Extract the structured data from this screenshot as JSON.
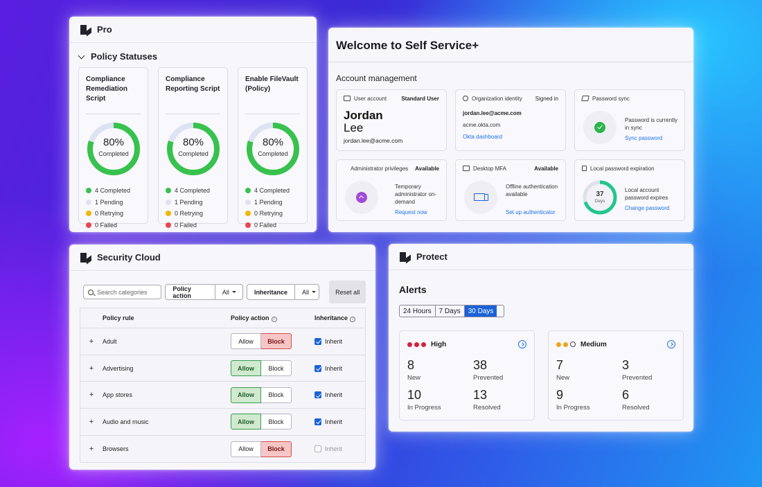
{
  "pro": {
    "title": "Pro",
    "section": "Policy Statuses",
    "cards": [
      {
        "title": "Compliance Remediation Script",
        "percent": 80,
        "percent_label": "80%",
        "status": "Completed",
        "legend": {
          "completed": "4 Completed",
          "pending": "1 Pending",
          "retrying": "0 Retrying",
          "failed": "0 Failed"
        }
      },
      {
        "title": "Compliance Reporting Script",
        "percent": 80,
        "percent_label": "80%",
        "status": "Completed",
        "legend": {
          "completed": "4 Completed",
          "pending": "1 Pending",
          "retrying": "0 Retrying",
          "failed": "0 Failed"
        }
      },
      {
        "title": "Enable FileVault (Policy)",
        "percent": 80,
        "percent_label": "80%",
        "status": "Completed",
        "legend": {
          "completed": "4 Completed",
          "pending": "1 Pending",
          "retrying": "0 Retrying",
          "failed": "0 Failed"
        }
      }
    ],
    "colors": {
      "completed": "#37c24d",
      "pending": "#dde3f3",
      "retrying": "#f2b705",
      "failed": "#e8464a"
    }
  },
  "self_service": {
    "title": "Welcome to Self Service+",
    "subtitle": "Account management",
    "user_account": {
      "label": "User account",
      "role": "Standard User",
      "first": "Jordan",
      "last": "Lee",
      "email": "jordan.lee@acme.com"
    },
    "org_identity": {
      "label": "Organization identity",
      "status": "Signed in",
      "email": "jordan.lee@acme.com",
      "domain": "acme.okta.com",
      "link": "Okta dashboard"
    },
    "password_sync": {
      "label": "Password sync",
      "text": "Password is currently in sync",
      "link": "Sync password"
    },
    "admin": {
      "label": "Administrator privileges",
      "status": "Available",
      "text": "Temporary administrator on-demand",
      "link": "Request now"
    },
    "mfa": {
      "label": "Desktop MFA",
      "status": "Available",
      "text": "Offline authentication available",
      "link": "Set up authenticator"
    },
    "expiration": {
      "label": "Local password expiration",
      "days": "37",
      "days_unit": "Days",
      "days_fraction": 0.7,
      "text": "Local account password expires",
      "link": "Change password"
    }
  },
  "security_cloud": {
    "title": "Security Cloud",
    "search_placeholder": "Search categories",
    "filter1": {
      "label": "Policy action",
      "value": "All"
    },
    "filter2": {
      "label": "Inheritance",
      "value": "All"
    },
    "reset": "Reset all",
    "headers": {
      "rule": "Policy rule",
      "action": "Policy action",
      "inherit": "Inheritance"
    },
    "allow_label": "Allow",
    "block_label": "Block",
    "inherit_label": "Inherit",
    "rows": [
      {
        "name": "Adult",
        "action": "block",
        "inherit": true
      },
      {
        "name": "Advertising",
        "action": "allow",
        "inherit": true
      },
      {
        "name": "App stores",
        "action": "allow",
        "inherit": true
      },
      {
        "name": "Audio and music",
        "action": "allow",
        "inherit": true
      },
      {
        "name": "Browsers",
        "action": "block",
        "inherit": false
      }
    ]
  },
  "protect": {
    "title": "Protect",
    "alerts_title": "Alerts",
    "tabs": [
      "24 Hours",
      "7 Days",
      "30 Days"
    ],
    "active_tab": 2,
    "high": {
      "label": "High",
      "new": "8",
      "new_label": "New",
      "prevented": "38",
      "prevented_label": "Prevented",
      "in_progress": "10",
      "in_progress_label": "In Progress",
      "resolved": "13",
      "resolved_label": "Resolved"
    },
    "medium": {
      "label": "Medium",
      "new": "7",
      "new_label": "New",
      "prevented": "3",
      "prevented_label": "Prevented",
      "in_progress": "9",
      "in_progress_label": "In Progress",
      "resolved": "6",
      "resolved_label": "Resolved"
    },
    "colors": {
      "high": "#d8213a",
      "medium": "#f2a31b"
    }
  }
}
